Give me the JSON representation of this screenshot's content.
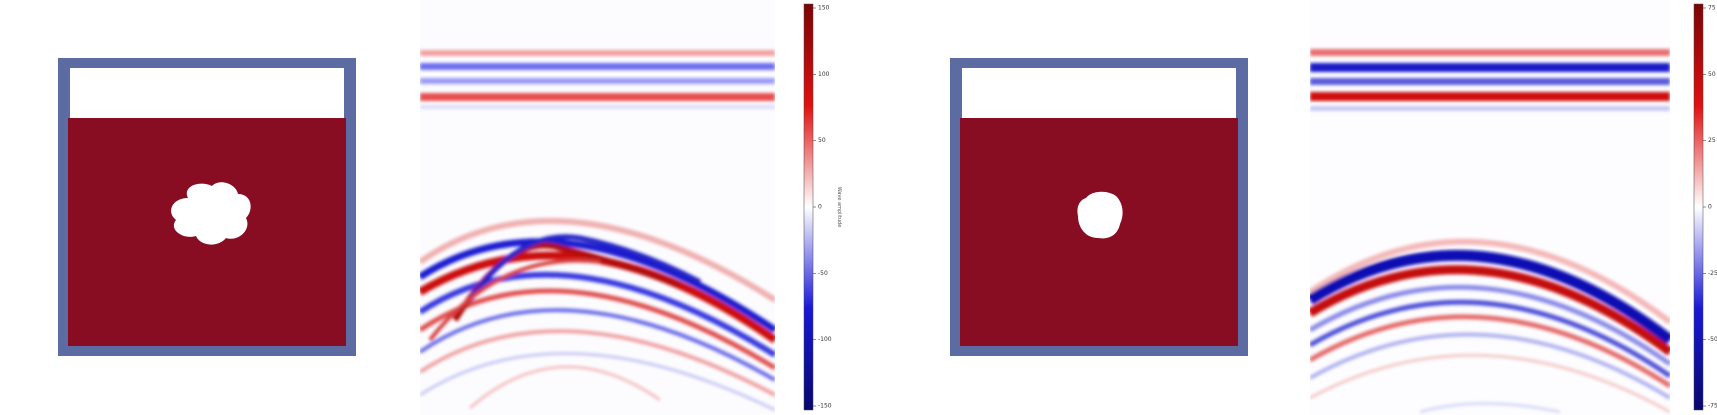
{
  "colors": {
    "model_frame": "#5d6ba3",
    "model_fill": "#890d22",
    "model_void": "#ffffff",
    "cmap_neg": "#08086e",
    "cmap_zero": "#ffffff",
    "cmap_pos": "#7a0406"
  },
  "chart_data": [
    {
      "type": "image",
      "panel": "model",
      "colormap": "two-tone (model and void)",
      "inclusion": "irregular lumpy void"
    },
    {
      "type": "heatmap",
      "panel": "wavefield",
      "colormap": "seismic (blue-white-red)",
      "colorbar": {
        "label": "Wave amplitude",
        "ticks": [
          "150",
          "100",
          "50",
          "0",
          "-50",
          "-100",
          "-150"
        ],
        "range": [
          -150,
          150
        ]
      },
      "features": [
        "three horizontal stripes near top",
        "multiple hyperbolic arrivals"
      ]
    },
    {
      "type": "image",
      "panel": "model",
      "colormap": "two-tone (model and void)",
      "inclusion": "small rounded void"
    },
    {
      "type": "heatmap",
      "panel": "wavefield",
      "colormap": "seismic (blue-white-red)",
      "colorbar": {
        "label": "",
        "ticks": [
          "75",
          "50",
          "25",
          "0",
          "-25",
          "-50",
          "-75"
        ],
        "range": [
          -75,
          75
        ]
      },
      "features": [
        "three horizontal stripes near top",
        "single strong hyperbolic arrival"
      ]
    }
  ]
}
